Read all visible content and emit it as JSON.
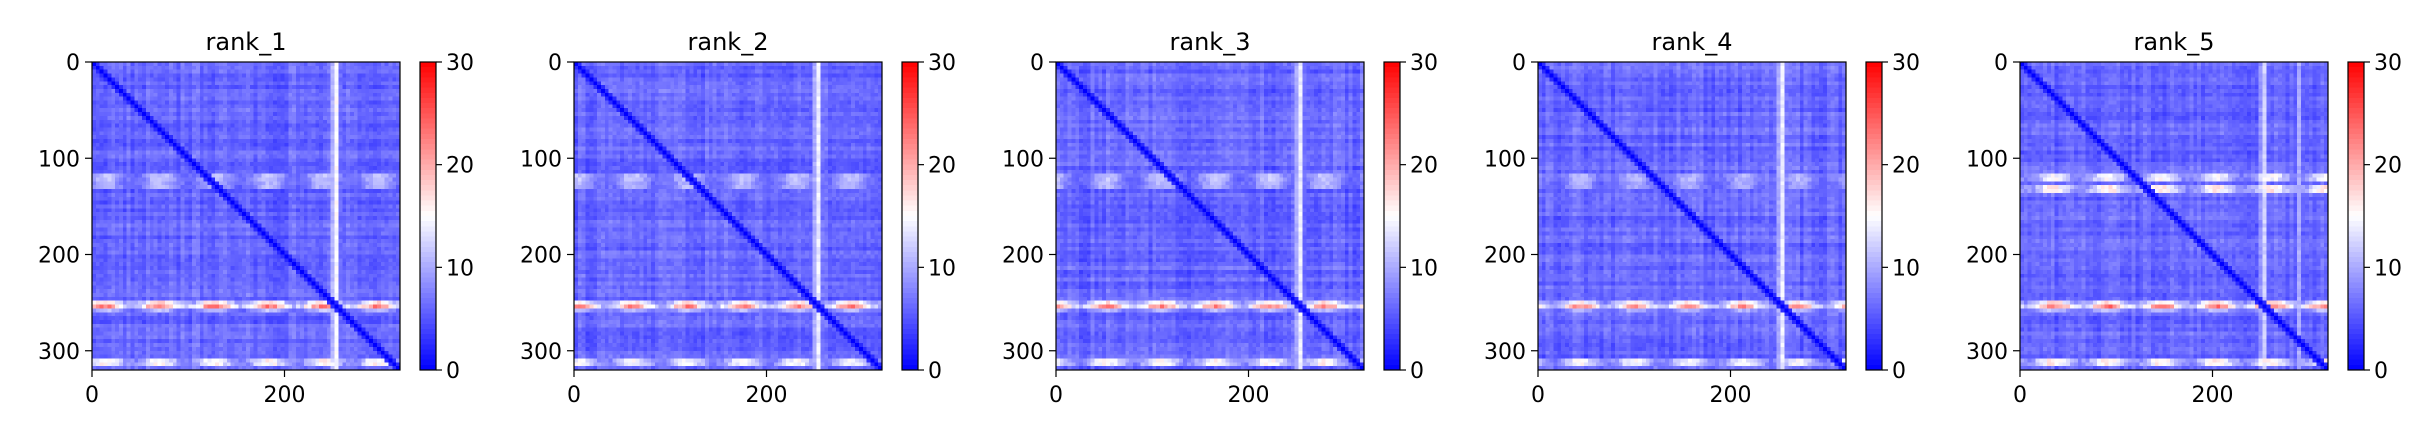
{
  "chart_data": [
    {
      "type": "heatmap",
      "title": "rank_1",
      "xlim": [
        0,
        320
      ],
      "ylim": [
        320,
        0
      ],
      "xticks": [
        0,
        200
      ],
      "yticks": [
        0,
        100,
        200,
        300
      ],
      "colorbar": {
        "ticks": [
          0,
          10,
          20,
          30
        ],
        "vmin": 0,
        "vmax": 30,
        "cmap": "bwr"
      },
      "grid": false,
      "features": {
        "background": 6,
        "diagonal": 0,
        "hot_rows": [
          {
            "at": 253,
            "value": 26
          },
          {
            "at": 120,
            "value": 15
          },
          {
            "at": 128,
            "value": 14
          },
          {
            "at": 312,
            "value": 20
          }
        ],
        "hot_cols": [
          {
            "at": 253,
            "value": 17
          }
        ]
      }
    },
    {
      "type": "heatmap",
      "title": "rank_2",
      "xlim": [
        0,
        320
      ],
      "ylim": [
        320,
        0
      ],
      "xticks": [
        0,
        200
      ],
      "yticks": [
        0,
        100,
        200,
        300
      ],
      "colorbar": {
        "ticks": [
          0,
          10,
          20,
          30
        ],
        "vmin": 0,
        "vmax": 30,
        "cmap": "bwr"
      },
      "grid": false,
      "features": {
        "background": 6,
        "diagonal": 0,
        "hot_rows": [
          {
            "at": 253,
            "value": 25
          },
          {
            "at": 120,
            "value": 15
          },
          {
            "at": 128,
            "value": 14
          },
          {
            "at": 312,
            "value": 19
          }
        ],
        "hot_cols": [
          {
            "at": 253,
            "value": 16
          }
        ]
      }
    },
    {
      "type": "heatmap",
      "title": "rank_3",
      "xlim": [
        0,
        320
      ],
      "ylim": [
        320,
        0
      ],
      "xticks": [
        0,
        200
      ],
      "yticks": [
        0,
        100,
        200,
        300
      ],
      "colorbar": {
        "ticks": [
          0,
          10,
          20,
          30
        ],
        "vmin": 0,
        "vmax": 30,
        "cmap": "bwr"
      },
      "grid": false,
      "features": {
        "background": 6,
        "diagonal": 0,
        "hot_rows": [
          {
            "at": 253,
            "value": 25
          },
          {
            "at": 120,
            "value": 15
          },
          {
            "at": 128,
            "value": 14
          },
          {
            "at": 312,
            "value": 20
          }
        ],
        "hot_cols": [
          {
            "at": 253,
            "value": 16
          }
        ]
      }
    },
    {
      "type": "heatmap",
      "title": "rank_4",
      "xlim": [
        0,
        320
      ],
      "ylim": [
        320,
        0
      ],
      "xticks": [
        0,
        200
      ],
      "yticks": [
        0,
        100,
        200,
        300
      ],
      "colorbar": {
        "ticks": [
          0,
          10,
          20,
          30
        ],
        "vmin": 0,
        "vmax": 30,
        "cmap": "bwr"
      },
      "grid": false,
      "features": {
        "background": 6,
        "diagonal": 0,
        "hot_rows": [
          {
            "at": 253,
            "value": 24
          },
          {
            "at": 120,
            "value": 14
          },
          {
            "at": 128,
            "value": 13
          },
          {
            "at": 312,
            "value": 19
          }
        ],
        "hot_cols": [
          {
            "at": 253,
            "value": 16
          }
        ]
      }
    },
    {
      "type": "heatmap",
      "title": "rank_5",
      "xlim": [
        0,
        320
      ],
      "ylim": [
        320,
        0
      ],
      "xticks": [
        0,
        200
      ],
      "yticks": [
        0,
        100,
        200,
        300
      ],
      "colorbar": {
        "ticks": [
          0,
          10,
          20,
          30
        ],
        "vmin": 0,
        "vmax": 30,
        "cmap": "bwr"
      },
      "grid": false,
      "features": {
        "background": 6,
        "diagonal": 0,
        "hot_rows": [
          {
            "at": 253,
            "value": 26
          },
          {
            "at": 120,
            "value": 19
          },
          {
            "at": 132,
            "value": 21
          },
          {
            "at": 312,
            "value": 21
          }
        ],
        "hot_cols": [
          {
            "at": 253,
            "value": 14
          },
          {
            "at": 290,
            "value": 10
          }
        ]
      }
    }
  ],
  "colors": {
    "low": "#0000ff",
    "mid": "#ffffff",
    "high": "#ff0000"
  }
}
